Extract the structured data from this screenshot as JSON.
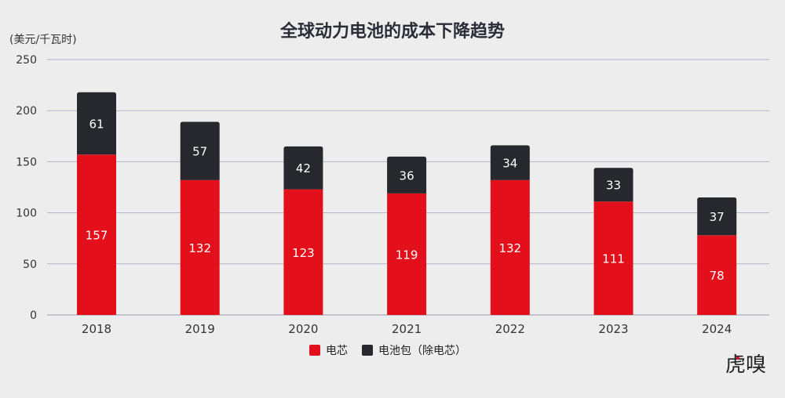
{
  "chart_data": {
    "type": "bar",
    "stacked": true,
    "title": "全球动力电池的成本下降趋势",
    "ylabel": "(美元/千瓦时)",
    "xlabel": "",
    "categories": [
      "2018",
      "2019",
      "2020",
      "2021",
      "2022",
      "2023",
      "2024"
    ],
    "series": [
      {
        "name": "电芯",
        "color": "#e3101c",
        "values": [
          157,
          132,
          123,
          119,
          132,
          111,
          78
        ]
      },
      {
        "name": "电池包（除电芯）",
        "color": "#27282d",
        "values": [
          61,
          57,
          42,
          36,
          34,
          33,
          37
        ]
      }
    ],
    "ylim": [
      0,
      250
    ],
    "yticks": [
      0,
      50,
      100,
      150,
      200,
      250
    ],
    "grid": true,
    "legend": "bottom"
  },
  "watermark": "虎嗅"
}
